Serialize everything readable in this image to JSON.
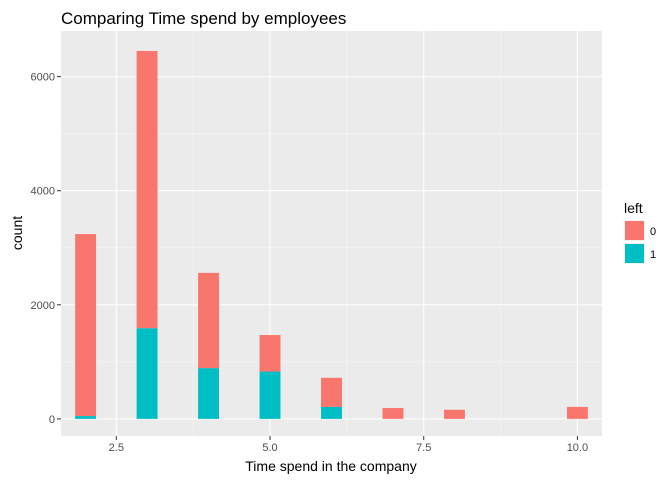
{
  "chart_data": {
    "type": "bar",
    "stacked": true,
    "title": "Comparing Time spend by employees",
    "xlabel": "Time spend in the company",
    "ylabel": "count",
    "x": [
      2,
      3,
      4,
      5,
      6,
      7,
      8,
      10
    ],
    "xlim": [
      1.6,
      10.4
    ],
    "ylim": [
      -300,
      6800
    ],
    "xticks": [
      2.5,
      5.0,
      7.5,
      10.0
    ],
    "xtick_labels": [
      "2.5",
      "5.0",
      "7.5",
      "10.0"
    ],
    "yticks": [
      0,
      2000,
      4000,
      6000
    ],
    "ytick_labels": [
      "0",
      "2000",
      "4000",
      "6000"
    ],
    "grid": true,
    "legend": {
      "title": "left",
      "position": "right"
    },
    "series": [
      {
        "name": "0",
        "color": "#F8766D",
        "values": [
          3190,
          4860,
          1670,
          640,
          510,
          190,
          160,
          210
        ]
      },
      {
        "name": "1",
        "color": "#00BFC4",
        "values": [
          50,
          1590,
          890,
          830,
          210,
          0,
          0,
          0
        ]
      }
    ]
  }
}
